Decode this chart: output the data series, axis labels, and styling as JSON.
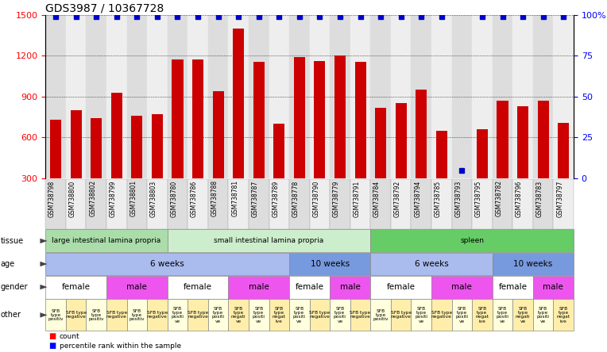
{
  "title": "GDS3987 / 10367728",
  "samples": [
    "GSM738798",
    "GSM738800",
    "GSM738802",
    "GSM738799",
    "GSM738801",
    "GSM738803",
    "GSM738780",
    "GSM738786",
    "GSM738788",
    "GSM738781",
    "GSM738787",
    "GSM738789",
    "GSM738778",
    "GSM738790",
    "GSM738779",
    "GSM738791",
    "GSM738784",
    "GSM738792",
    "GSM738794",
    "GSM738785",
    "GSM738793",
    "GSM738795",
    "GSM738782",
    "GSM738796",
    "GSM738783",
    "GSM738797"
  ],
  "counts": [
    730,
    800,
    740,
    930,
    760,
    770,
    1170,
    1170,
    940,
    1400,
    1155,
    700,
    1190,
    1160,
    1200,
    1155,
    820,
    850,
    950,
    650,
    300,
    660,
    870,
    830,
    870,
    710
  ],
  "percentiles": [
    99,
    99,
    99,
    99,
    99,
    99,
    99,
    99,
    99,
    99,
    99,
    99,
    99,
    99,
    99,
    99,
    99,
    99,
    99,
    99,
    5,
    99,
    99,
    99,
    99,
    99
  ],
  "bar_color": "#cc0000",
  "dot_color": "#0000cc",
  "ylim_left": [
    300,
    1500
  ],
  "ylim_right": [
    0,
    100
  ],
  "yticks_left": [
    300,
    600,
    900,
    1200,
    1500
  ],
  "yticks_right": [
    0,
    25,
    50,
    75,
    100
  ],
  "grid_lines": [
    600,
    900,
    1200
  ],
  "tissue_groups": [
    {
      "label": "large intestinal lamina propria",
      "start": 0,
      "end": 6,
      "color": "#aaddaa"
    },
    {
      "label": "small intestinal lamina propria",
      "start": 6,
      "end": 16,
      "color": "#cceecc"
    },
    {
      "label": "spleen",
      "start": 16,
      "end": 26,
      "color": "#66cc66"
    }
  ],
  "age_groups": [
    {
      "label": "6 weeks",
      "start": 0,
      "end": 12,
      "color": "#aabbee"
    },
    {
      "label": "10 weeks",
      "start": 12,
      "end": 16,
      "color": "#7799dd"
    },
    {
      "label": "6 weeks",
      "start": 16,
      "end": 22,
      "color": "#aabbee"
    },
    {
      "label": "10 weeks",
      "start": 22,
      "end": 26,
      "color": "#7799dd"
    }
  ],
  "gender_groups": [
    {
      "label": "female",
      "start": 0,
      "end": 3,
      "color": "#ffffff"
    },
    {
      "label": "male",
      "start": 3,
      "end": 6,
      "color": "#ee55ee"
    },
    {
      "label": "female",
      "start": 6,
      "end": 9,
      "color": "#ffffff"
    },
    {
      "label": "male",
      "start": 9,
      "end": 12,
      "color": "#ee55ee"
    },
    {
      "label": "female",
      "start": 12,
      "end": 14,
      "color": "#ffffff"
    },
    {
      "label": "male",
      "start": 14,
      "end": 16,
      "color": "#ee55ee"
    },
    {
      "label": "female",
      "start": 16,
      "end": 19,
      "color": "#ffffff"
    },
    {
      "label": "male",
      "start": 19,
      "end": 22,
      "color": "#ee55ee"
    },
    {
      "label": "female",
      "start": 22,
      "end": 24,
      "color": "#ffffff"
    },
    {
      "label": "male",
      "start": 24,
      "end": 26,
      "color": "#ee55ee"
    }
  ],
  "other_groups": [
    {
      "label": "SFB\ntype\npositiv",
      "start": 0,
      "end": 1,
      "color": "#ffffdd"
    },
    {
      "label": "SFB type\nnegative",
      "start": 1,
      "end": 2,
      "color": "#ffeeaa"
    },
    {
      "label": "SFB\ntype\npositiv",
      "start": 2,
      "end": 3,
      "color": "#ffffdd"
    },
    {
      "label": "SFB type\nnegative",
      "start": 3,
      "end": 4,
      "color": "#ffeeaa"
    },
    {
      "label": "SFB\ntype\npositiv",
      "start": 4,
      "end": 5,
      "color": "#ffffdd"
    },
    {
      "label": "SFB type\nnegative",
      "start": 5,
      "end": 6,
      "color": "#ffeeaa"
    },
    {
      "label": "SFB\ntype\npositi\nve",
      "start": 6,
      "end": 7,
      "color": "#ffffdd"
    },
    {
      "label": "SFB type\nnegative",
      "start": 7,
      "end": 8,
      "color": "#ffeeaa"
    },
    {
      "label": "SFB\ntype\npositi\nve",
      "start": 8,
      "end": 9,
      "color": "#ffffdd"
    },
    {
      "label": "SFB\ntype\nnegati\nve",
      "start": 9,
      "end": 10,
      "color": "#ffeeaa"
    },
    {
      "label": "SFB\ntype\npositi\nve",
      "start": 10,
      "end": 11,
      "color": "#ffffdd"
    },
    {
      "label": "SFB\ntype\nnegat\nive",
      "start": 11,
      "end": 12,
      "color": "#ffeeaa"
    },
    {
      "label": "SFB\ntype\npositi\nve",
      "start": 12,
      "end": 13,
      "color": "#ffffdd"
    },
    {
      "label": "SFB type\nnegative",
      "start": 13,
      "end": 14,
      "color": "#ffeeaa"
    },
    {
      "label": "SFB\ntype\npositi\nve",
      "start": 14,
      "end": 15,
      "color": "#ffffdd"
    },
    {
      "label": "SFB type\nnegative",
      "start": 15,
      "end": 16,
      "color": "#ffeeaa"
    },
    {
      "label": "SFB\ntype\npositiv",
      "start": 16,
      "end": 17,
      "color": "#ffffdd"
    },
    {
      "label": "SFB type\nnegative",
      "start": 17,
      "end": 18,
      "color": "#ffeeaa"
    },
    {
      "label": "SFB\ntype\npositi\nve",
      "start": 18,
      "end": 19,
      "color": "#ffffdd"
    },
    {
      "label": "SFB type\nnegative",
      "start": 19,
      "end": 20,
      "color": "#ffeeaa"
    },
    {
      "label": "SFB\ntype\npositi\nve",
      "start": 20,
      "end": 21,
      "color": "#ffffdd"
    },
    {
      "label": "SFB\ntype\nnegat\nive",
      "start": 21,
      "end": 22,
      "color": "#ffeeaa"
    },
    {
      "label": "SFB\ntype\npositi\nve",
      "start": 22,
      "end": 23,
      "color": "#ffffdd"
    },
    {
      "label": "SFB\ntype\nnegati\nve",
      "start": 23,
      "end": 24,
      "color": "#ffeeaa"
    },
    {
      "label": "SFB\ntype\npositi\nve",
      "start": 24,
      "end": 25,
      "color": "#ffffdd"
    },
    {
      "label": "SFB\ntype\nnegat\nive",
      "start": 25,
      "end": 26,
      "color": "#ffeeaa"
    }
  ],
  "title_fontsize": 10,
  "axis_fontsize": 8,
  "row_label_fontsize": 7,
  "tissue_fontsize": 6.5,
  "age_fontsize": 7.5,
  "gender_fontsize": 7.5,
  "other_fontsize": 4.2
}
